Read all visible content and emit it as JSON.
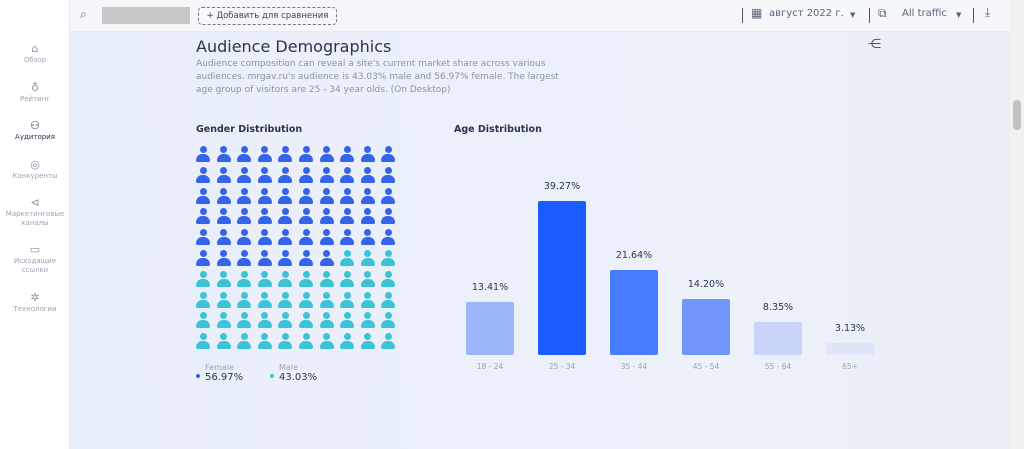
{
  "sidebar": {
    "items": [
      {
        "label": "Обзор",
        "icon": "home-icon",
        "glyph": "⌂"
      },
      {
        "label": "Рейтинг",
        "icon": "trophy-icon",
        "glyph": "♁"
      },
      {
        "label": "Аудитория",
        "icon": "audience-icon",
        "glyph": "⚇"
      },
      {
        "label": "Конкуренты",
        "icon": "compass-icon",
        "glyph": "◎"
      },
      {
        "label": "Маркетинговые каналы",
        "icon": "megaphone-icon",
        "glyph": "⊲"
      },
      {
        "label": "Исходящие ссылки",
        "icon": "monitor-link-icon",
        "glyph": "▭"
      },
      {
        "label": "Технологии",
        "icon": "bug-icon",
        "glyph": "✲"
      }
    ]
  },
  "topbar": {
    "add_compare": "+ Добавить для сравнения",
    "date": "август 2022 г.",
    "traffic": "All traffic"
  },
  "section": {
    "title": "Audience Demographics",
    "description": "Audience composition can reveal a site's current market share across various audiences. mrgav.ru's audience is 43.03% male and 56.97% female. The largest age group of visitors are 25 - 34 year olds. (On Desktop)"
  },
  "gender": {
    "title": "Gender Distribution",
    "female_label": "Female",
    "female_value": "56.97%",
    "male_label": "Male",
    "male_value": "43.03%",
    "female_icons": 57,
    "total_icons": 100,
    "female_color": "#3563e9",
    "male_color": "#3cc3d8"
  },
  "chart_data": {
    "type": "bar",
    "title": "Age Distribution",
    "categories": [
      "18 - 24",
      "25 - 34",
      "35 - 44",
      "45 - 54",
      "55 - 64",
      "65+"
    ],
    "values": [
      13.41,
      39.27,
      21.64,
      14.2,
      8.35,
      3.13
    ],
    "labels": [
      "13.41%",
      "39.27%",
      "21.64%",
      "14.20%",
      "8.35%",
      "3.13%"
    ],
    "colors": [
      "#9db5fa",
      "#1a5cff",
      "#467cfd",
      "#7097f9",
      "#c9d5f8",
      "#dfe6fa"
    ]
  }
}
